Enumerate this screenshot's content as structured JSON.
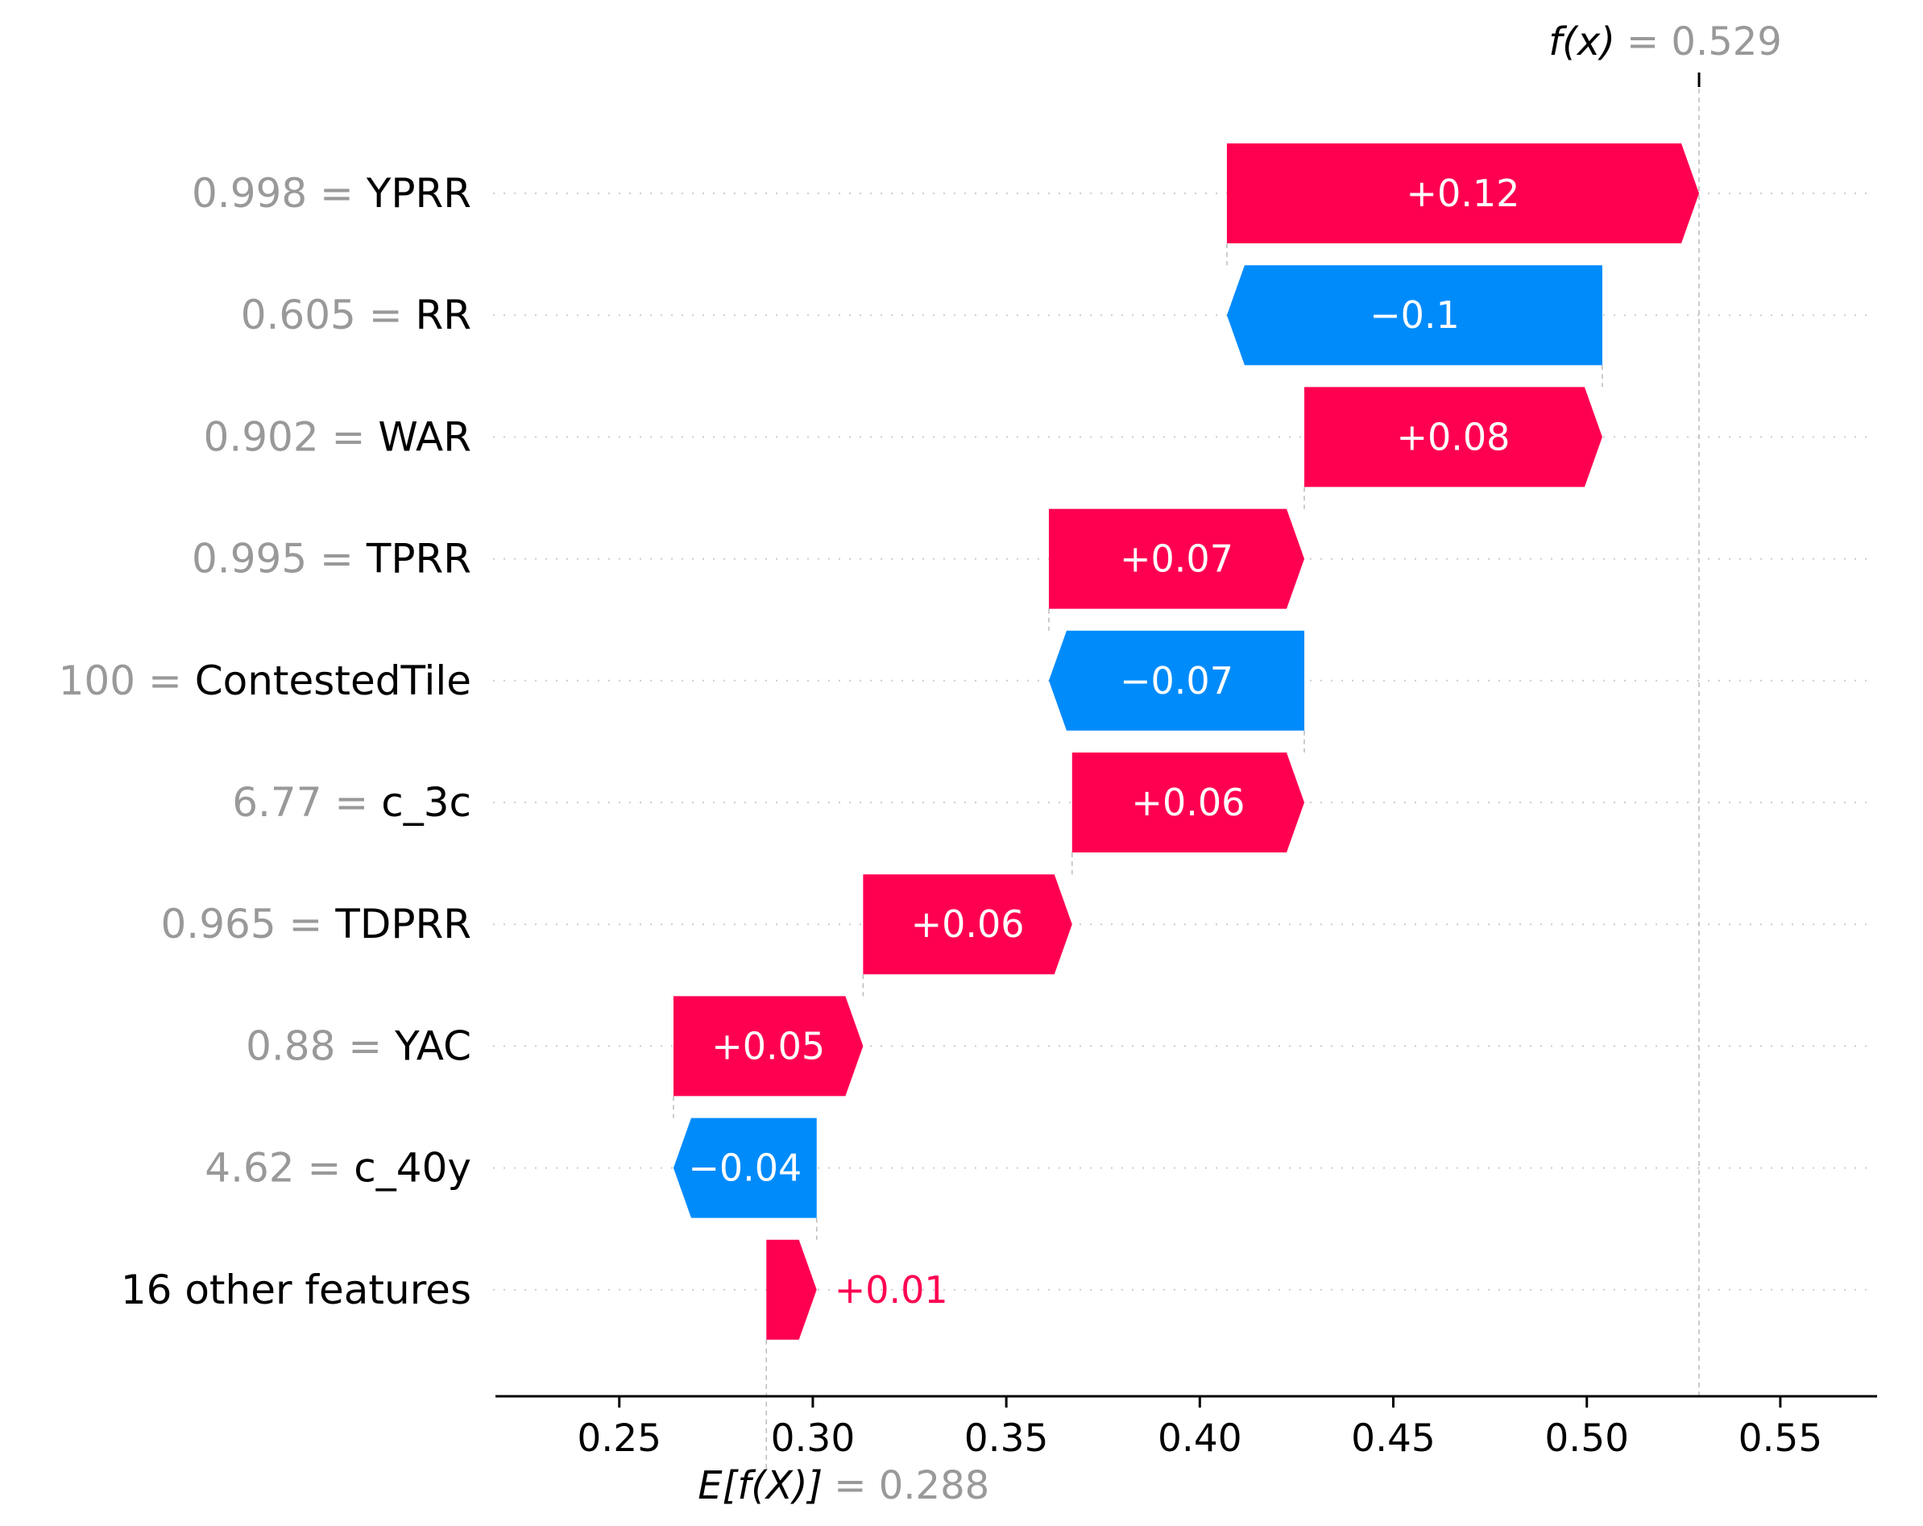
{
  "chart_data": {
    "type": "waterfall",
    "base_value": 0.288,
    "output_value": 0.529,
    "base_label_text": "E[f(X)]",
    "output_label_text": "f(x)",
    "base_value_text": "= 0.288",
    "output_value_text": "= 0.529",
    "xlim": [
      0.218,
      0.575
    ],
    "xticks": [
      "0.25",
      "0.30",
      "0.35",
      "0.40",
      "0.45",
      "0.50",
      "0.55"
    ],
    "xtick_values": [
      0.25,
      0.3,
      0.35,
      0.4,
      0.45,
      0.5,
      0.55
    ],
    "colors": {
      "positive": "#ff0051",
      "negative": "#008bfb",
      "value_text": "#999999"
    },
    "rows": [
      {
        "value": "0.998",
        "name": "YPRR",
        "start": 0.407,
        "end": 0.529,
        "label": "+0.12"
      },
      {
        "value": "0.605",
        "name": "RR",
        "start": 0.504,
        "end": 0.407,
        "label": "−0.1"
      },
      {
        "value": "0.902",
        "name": "WAR",
        "start": 0.427,
        "end": 0.504,
        "label": "+0.08"
      },
      {
        "value": "0.995",
        "name": "TPRR",
        "start": 0.361,
        "end": 0.427,
        "label": "+0.07"
      },
      {
        "value": "100",
        "name": "ContestedTile",
        "start": 0.427,
        "end": 0.361,
        "label": "−0.07"
      },
      {
        "value": "6.77",
        "name": "c_3c",
        "start": 0.367,
        "end": 0.427,
        "label": "+0.06"
      },
      {
        "value": "0.965",
        "name": "TDPRR",
        "start": 0.313,
        "end": 0.367,
        "label": "+0.06"
      },
      {
        "value": "0.88",
        "name": "YAC",
        "start": 0.264,
        "end": 0.313,
        "label": "+0.05"
      },
      {
        "value": "4.62",
        "name": "c_40y",
        "start": 0.301,
        "end": 0.264,
        "label": "−0.04"
      },
      {
        "value": "",
        "name": "16 other features",
        "start": 0.288,
        "end": 0.301,
        "label": "+0.01"
      }
    ]
  }
}
